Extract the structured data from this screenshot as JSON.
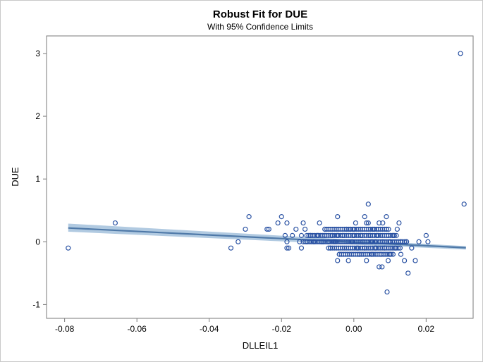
{
  "chart_data": {
    "type": "scatter",
    "title": "Robust Fit for DUE",
    "subtitle": "With 95% Confidence Limits",
    "xlabel": "DLLEIL1",
    "ylabel": "DUE",
    "xlim": [
      -0.085,
      0.033
    ],
    "ylim": [
      -1.22,
      3.28
    ],
    "xticks": [
      -0.08,
      -0.06,
      -0.04,
      -0.02,
      0.0,
      0.02
    ],
    "xtick_labels": [
      "-0.08",
      "-0.06",
      "-0.04",
      "-0.02",
      "0.00",
      "0.02"
    ],
    "yticks": [
      -1,
      0,
      1,
      2,
      3
    ],
    "ytick_labels": [
      "-1",
      "0",
      "1",
      "2",
      "3"
    ],
    "grid": false,
    "colors": {
      "marker": "#2a52a3",
      "fit_line": "#4f79a8",
      "band": "#a9c4de",
      "axis": "#7a7a7a"
    },
    "fit_line": {
      "x": [
        -0.079,
        0.031
      ],
      "y": [
        0.22,
        -0.095
      ]
    },
    "confidence_band": {
      "x": [
        -0.079,
        0.031
      ],
      "lower": [
        0.16,
        -0.125
      ],
      "upper": [
        0.29,
        -0.07
      ]
    },
    "points": [
      [
        -0.079,
        -0.1
      ],
      [
        -0.066,
        0.3
      ],
      [
        -0.034,
        -0.1
      ],
      [
        -0.032,
        0.0
      ],
      [
        -0.03,
        0.2
      ],
      [
        -0.029,
        0.4
      ],
      [
        -0.024,
        0.2
      ],
      [
        -0.0235,
        0.2
      ],
      [
        -0.021,
        0.3
      ],
      [
        -0.02,
        0.4
      ],
      [
        -0.019,
        0.1
      ],
      [
        -0.0185,
        0.3
      ],
      [
        -0.0185,
        0.0
      ],
      [
        -0.018,
        -0.1
      ],
      [
        -0.0185,
        -0.1
      ],
      [
        -0.017,
        0.1
      ],
      [
        -0.016,
        0.2
      ],
      [
        -0.015,
        0.0
      ],
      [
        -0.0145,
        0.1
      ],
      [
        -0.0145,
        -0.1
      ],
      [
        -0.014,
        0.3
      ],
      [
        -0.0135,
        0.2
      ],
      [
        -0.013,
        0.0
      ],
      [
        -0.012,
        0.1
      ],
      [
        -0.011,
        0.0
      ],
      [
        -0.01,
        0.1
      ],
      [
        -0.0095,
        0.3
      ],
      [
        -0.009,
        0.0
      ],
      [
        -0.0085,
        0.0
      ],
      [
        -0.008,
        0.2
      ],
      [
        -0.008,
        0.1
      ],
      [
        -0.007,
        0.0
      ],
      [
        -0.0065,
        -0.1
      ],
      [
        -0.006,
        0.1
      ],
      [
        -0.0055,
        0.0
      ],
      [
        -0.005,
        0.0
      ],
      [
        -0.0045,
        0.4
      ],
      [
        -0.0045,
        0.1
      ],
      [
        -0.004,
        -0.2
      ],
      [
        -0.0045,
        -0.3
      ],
      [
        -0.003,
        0.1
      ],
      [
        -0.002,
        0.2
      ],
      [
        -0.0015,
        -0.3
      ],
      [
        -0.001,
        0.2
      ],
      [
        -0.0005,
        0.0
      ],
      [
        0.0,
        0.1
      ],
      [
        0.0,
        0.2
      ],
      [
        0.0005,
        0.3
      ],
      [
        0.001,
        -0.1
      ],
      [
        0.0015,
        -0.2
      ],
      [
        0.002,
        0.1
      ],
      [
        0.0025,
        0.0
      ],
      [
        0.003,
        0.4
      ],
      [
        0.003,
        -0.1
      ],
      [
        0.0035,
        0.3
      ],
      [
        0.0035,
        -0.3
      ],
      [
        0.004,
        0.6
      ],
      [
        0.004,
        0.3
      ],
      [
        0.0045,
        0.1
      ],
      [
        0.005,
        -0.2
      ],
      [
        0.005,
        0.0
      ],
      [
        0.0055,
        0.2
      ],
      [
        0.006,
        -0.1
      ],
      [
        0.006,
        0.0
      ],
      [
        0.0065,
        0.1
      ],
      [
        0.007,
        0.3
      ],
      [
        0.007,
        -0.4
      ],
      [
        0.0075,
        -0.2
      ],
      [
        0.0078,
        -0.4
      ],
      [
        0.008,
        0.3
      ],
      [
        0.008,
        0.0
      ],
      [
        0.0085,
        -0.1
      ],
      [
        0.009,
        0.4
      ],
      [
        0.009,
        0.2
      ],
      [
        0.0092,
        -0.8
      ],
      [
        0.0095,
        0.1
      ],
      [
        0.0095,
        -0.3
      ],
      [
        0.01,
        0.0
      ],
      [
        0.01,
        -0.2
      ],
      [
        0.011,
        0.1
      ],
      [
        0.0115,
        -0.1
      ],
      [
        0.012,
        0.2
      ],
      [
        0.0125,
        0.3
      ],
      [
        0.013,
        0.0
      ],
      [
        0.013,
        -0.2
      ],
      [
        0.014,
        -0.3
      ],
      [
        0.0145,
        0.0
      ],
      [
        0.015,
        -0.5
      ],
      [
        0.016,
        -0.1
      ],
      [
        0.017,
        -0.3
      ],
      [
        0.018,
        0.0
      ],
      [
        0.02,
        0.1
      ],
      [
        0.0205,
        0.0
      ],
      [
        0.0295,
        3.0
      ],
      [
        0.0305,
        0.6
      ]
    ],
    "dense_band": [
      {
        "y": 0.1,
        "x_from": -0.013,
        "x_to": 0.012
      },
      {
        "y": 0.0,
        "x_from": -0.014,
        "x_to": 0.015
      },
      {
        "y": -0.1,
        "x_from": -0.007,
        "x_to": 0.013
      },
      {
        "y": 0.2,
        "x_from": -0.008,
        "x_to": 0.01
      },
      {
        "y": -0.2,
        "x_from": -0.004,
        "x_to": 0.011
      }
    ]
  }
}
